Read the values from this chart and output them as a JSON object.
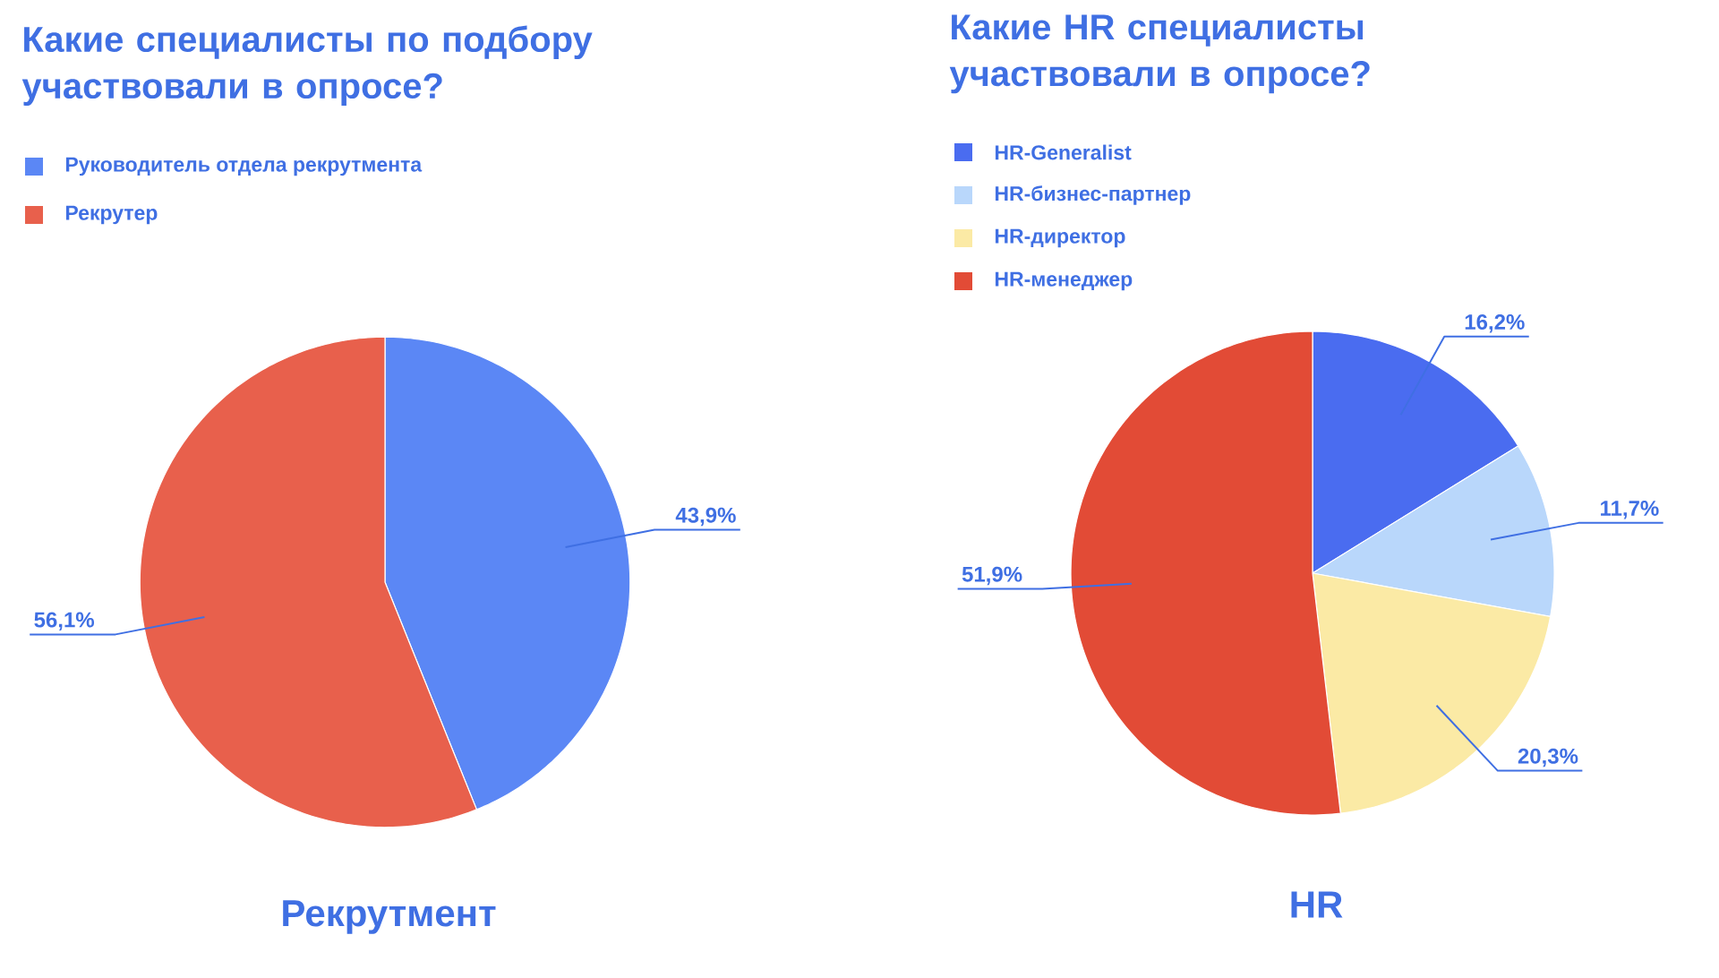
{
  "chart_data": [
    {
      "type": "pie",
      "title": "Какие специалисты по подбору участвовали в опросе?",
      "categories": [
        "Руководитель отдела рекрутмента",
        "Рекрутер"
      ],
      "values": [
        43.9,
        56.1
      ],
      "colors": [
        "#5b87f5",
        "#e8604c"
      ],
      "value_labels": [
        "43,9%",
        "56,1%"
      ],
      "legend": "top left",
      "annotations": [
        "Рекрутмент"
      ]
    },
    {
      "type": "pie",
      "title": "Какие HR специалисты участвовали в опросе?",
      "categories": [
        "HR-Generalist",
        "HR-бизнес-партнер",
        "HR-директор",
        "HR-менеджер"
      ],
      "values": [
        16.2,
        11.7,
        20.3,
        51.9
      ],
      "colors": [
        "#4a6cf0",
        "#b9d7fb",
        "#fbeaa5",
        "#e24b36"
      ],
      "value_labels": [
        "16,2%",
        "11,7%",
        "20,3%",
        "51,9%"
      ],
      "legend": "top left",
      "annotations": [
        "HR"
      ]
    }
  ]
}
